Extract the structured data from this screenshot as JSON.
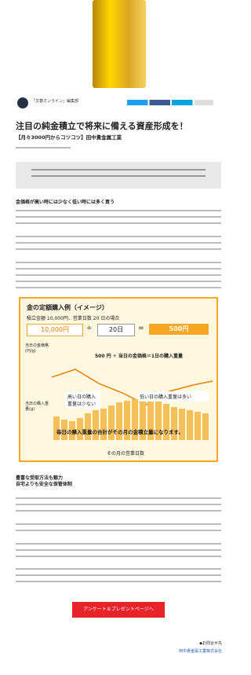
{
  "author": "「文春オンライン」編集部",
  "headline": "注目の純金積立で将来に備える資産形成を！",
  "subheadline": "【月々3000円からコツコツ】田中貴金属工業",
  "section1": "金価格が高い時には少なく低い時には多く買う",
  "infographic": {
    "title": "金の定額購入例（イメージ）",
    "condition": "積立金額 10,000円、営業日数 20 日の場合",
    "amount": "10,000円",
    "divide": "÷",
    "days": "20日",
    "equals": "=",
    "result": "500円",
    "price_label": "当日の金価格(円/g)",
    "formula": "500 円 ÷ 当日の金価格＝1日の購入重量",
    "weight_label": "当日の購入重量(g)",
    "high_note": "高い日の購入重量は少ない",
    "low_note": "低い日の購入重量は多い",
    "total_note": "毎日の購入重量の合計がその月の金積立量になります。",
    "x_label": "その月の営業日数"
  },
  "section2": [
    "豊富な受取方法も魅力",
    "自宅よりも安全な保管体制"
  ],
  "button": "アンケート＆プレゼントページへ",
  "contact": {
    "label": "◆お問合せ先",
    "company": "田中貴金属工業株式会社"
  }
}
